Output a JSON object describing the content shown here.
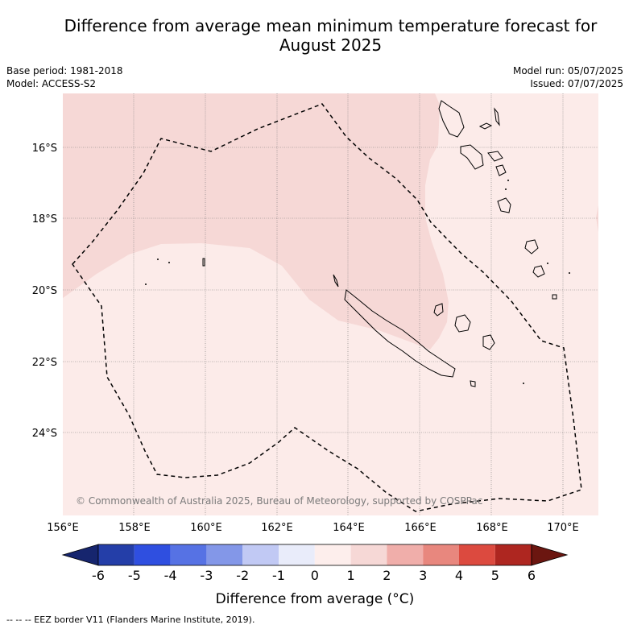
{
  "title_line1": "Difference from average mean minimum temperature forecast for",
  "title_line2": "August 2025",
  "meta_left": {
    "base_period": "Base period: 1981-2018",
    "model": "Model: ACCESS-S2"
  },
  "meta_right": {
    "model_run": "Model run: 05/07/2025",
    "issued": "Issued: 07/07/2025"
  },
  "map": {
    "lat_labels": [
      "16°S",
      "18°S",
      "20°S",
      "22°S",
      "24°S"
    ],
    "lon_labels": [
      "156°E",
      "158°E",
      "160°E",
      "162°E",
      "164°E",
      "166°E",
      "168°E",
      "170°E"
    ],
    "copyright": "© Commonwealth of Australia 2025, Bureau of Meteorology, supported by COSPPac",
    "anomaly_colors": {
      "light": "#fcebe9",
      "medium": "#f6d8d6"
    }
  },
  "colorbar": {
    "ticks": [
      "-6",
      "-5",
      "-4",
      "-3",
      "-2",
      "-1",
      "0",
      "1",
      "2",
      "3",
      "4",
      "5",
      "6"
    ],
    "colors": [
      "#16256e",
      "#243ea8",
      "#2f4fe0",
      "#5672e4",
      "#8397e8",
      "#c1c9f4",
      "#e9ecfa",
      "#fdeeec",
      "#f6d8d6",
      "#f0aeaa",
      "#e8877e",
      "#dc4a3f",
      "#ae2620",
      "#6b1610"
    ],
    "label": "Difference from average (°C)"
  },
  "footnote": "-- -- -- EEZ border V11 (Flanders Marine Institute, 2019)."
}
